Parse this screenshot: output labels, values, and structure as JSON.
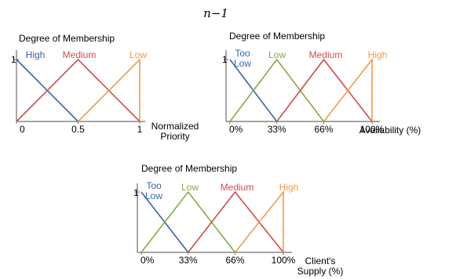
{
  "top_text": "n−1",
  "colors": {
    "blue": "#3a62ad",
    "red": "#d24b4b",
    "green": "#86ab3f",
    "orange": "#f39a4a"
  },
  "chart_data": [
    {
      "type": "line",
      "ylabel": "Degree of Membership",
      "xlabel_lines": [
        "Normalized",
        "Priority"
      ],
      "y_tick": "1",
      "x_ticks": [
        {
          "value": 0,
          "label": "0"
        },
        {
          "value": 0.5,
          "label": "0.5"
        },
        {
          "value": 1,
          "label": "1"
        }
      ],
      "xlim": [
        0,
        1
      ],
      "ylim": [
        0,
        1
      ],
      "series": [
        {
          "name": "High",
          "name_lines": [
            "High"
          ],
          "color": "blue",
          "x": [
            0,
            0.5
          ],
          "y": [
            1,
            0
          ]
        },
        {
          "name": "Medium",
          "name_lines": [
            "Medium"
          ],
          "color": "red",
          "x": [
            0,
            0.5,
            1
          ],
          "y": [
            0,
            1,
            0
          ]
        },
        {
          "name": "Low",
          "name_lines": [
            "Low"
          ],
          "color": "orange",
          "x": [
            0.5,
            1,
            1
          ],
          "y": [
            0,
            1,
            0
          ]
        }
      ]
    },
    {
      "type": "line",
      "ylabel": "Degree of Membership",
      "xlabel_lines": [
        "Availability (%)"
      ],
      "y_tick": "1",
      "x_ticks": [
        {
          "value": 0,
          "label": "0%"
        },
        {
          "value": 33,
          "label": "33%"
        },
        {
          "value": 66,
          "label": "66%"
        },
        {
          "value": 100,
          "label": "100%"
        }
      ],
      "xlim": [
        0,
        100
      ],
      "ylim": [
        0,
        1
      ],
      "series": [
        {
          "name": "Too Low",
          "name_lines": [
            "Too",
            "Low"
          ],
          "color": "blue",
          "x": [
            0,
            33
          ],
          "y": [
            1,
            0
          ]
        },
        {
          "name": "Low",
          "name_lines": [
            "Low"
          ],
          "color": "green",
          "x": [
            0,
            33,
            66
          ],
          "y": [
            0,
            1,
            0
          ]
        },
        {
          "name": "Medium",
          "name_lines": [
            "Medium"
          ],
          "color": "red",
          "x": [
            33,
            66,
            100
          ],
          "y": [
            0,
            1,
            0
          ]
        },
        {
          "name": "High",
          "name_lines": [
            "High"
          ],
          "color": "orange",
          "x": [
            66,
            100,
            100
          ],
          "y": [
            0,
            1,
            0
          ]
        }
      ]
    },
    {
      "type": "line",
      "ylabel": "Degree of Membership",
      "xlabel_lines": [
        "Client's",
        "Supply (%)"
      ],
      "y_tick": "1",
      "x_ticks": [
        {
          "value": 0,
          "label": "0%"
        },
        {
          "value": 33,
          "label": "33%"
        },
        {
          "value": 66,
          "label": "66%"
        },
        {
          "value": 100,
          "label": "100%"
        }
      ],
      "xlim": [
        0,
        100
      ],
      "ylim": [
        0,
        1
      ],
      "series": [
        {
          "name": "Too Low",
          "name_lines": [
            "Too",
            "Low"
          ],
          "color": "blue",
          "x": [
            0,
            33
          ],
          "y": [
            1,
            0
          ]
        },
        {
          "name": "Low",
          "name_lines": [
            "Low"
          ],
          "color": "green",
          "x": [
            0,
            33,
            66
          ],
          "y": [
            0,
            1,
            0
          ]
        },
        {
          "name": "Medium",
          "name_lines": [
            "Medium"
          ],
          "color": "red",
          "x": [
            33,
            66,
            100
          ],
          "y": [
            0,
            1,
            0
          ]
        },
        {
          "name": "High",
          "name_lines": [
            "High"
          ],
          "color": "orange",
          "x": [
            66,
            100,
            100
          ],
          "y": [
            0,
            1,
            0
          ]
        }
      ]
    }
  ]
}
